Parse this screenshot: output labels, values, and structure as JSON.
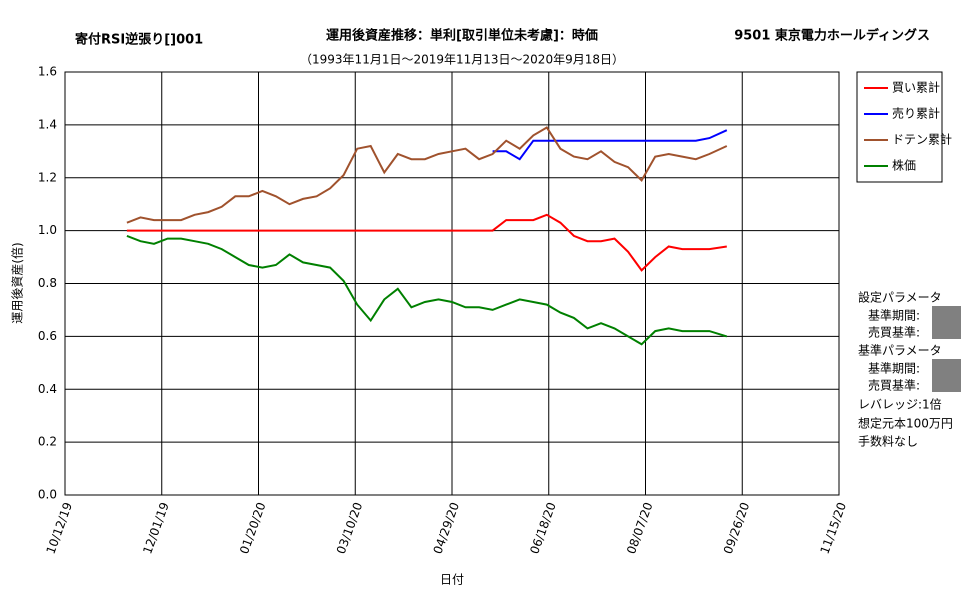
{
  "chart_data": {
    "type": "line",
    "title": "運用後資産推移：単利[取引単位未考慮]：時価",
    "subtitle": "（1993年11月1日～2019年11月13日～2020年9月18日）",
    "strategy": "寄付RSI逆張り[]001",
    "stock": "9501 東京電力ホールディングス",
    "xlabel": "日付",
    "ylabel": "運用後資産(倍)",
    "x": [
      "11/13/19",
      "11/20/19",
      "11/27/19",
      "12/04/19",
      "12/11/19",
      "12/18/19",
      "12/25/19",
      "01/01/20",
      "01/08/20",
      "01/15/20",
      "01/22/20",
      "01/29/20",
      "02/05/20",
      "02/12/20",
      "02/19/20",
      "02/26/20",
      "03/04/20",
      "03/11/20",
      "03/18/20",
      "03/25/20",
      "04/01/20",
      "04/08/20",
      "04/15/20",
      "04/22/20",
      "04/29/20",
      "05/06/20",
      "05/13/20",
      "05/20/20",
      "05/27/20",
      "06/03/20",
      "06/10/20",
      "06/17/20",
      "06/24/20",
      "07/01/20",
      "07/08/20",
      "07/15/20",
      "07/22/20",
      "07/29/20",
      "08/05/20",
      "08/12/20",
      "08/19/20",
      "08/26/20",
      "09/02/20",
      "09/09/20",
      "09/18/20"
    ],
    "series": [
      {
        "name": "買い累計",
        "color": "#ff0000",
        "values": [
          1.0,
          1.0,
          1.0,
          1.0,
          1.0,
          1.0,
          1.0,
          1.0,
          1.0,
          1.0,
          1.0,
          1.0,
          1.0,
          1.0,
          1.0,
          1.0,
          1.0,
          1.0,
          1.0,
          1.0,
          1.0,
          1.0,
          1.0,
          1.0,
          1.0,
          1.0,
          1.0,
          1.0,
          1.04,
          1.04,
          1.04,
          1.06,
          1.03,
          0.98,
          0.96,
          0.96,
          0.97,
          0.92,
          0.85,
          0.9,
          0.94,
          0.93,
          0.93,
          0.93,
          0.94
        ]
      },
      {
        "name": "売り累計",
        "color": "#0000ff",
        "values": [
          null,
          null,
          null,
          null,
          null,
          null,
          null,
          null,
          null,
          null,
          null,
          null,
          null,
          null,
          null,
          null,
          null,
          null,
          null,
          null,
          null,
          null,
          null,
          null,
          null,
          null,
          null,
          1.3,
          1.3,
          1.27,
          1.34,
          1.34,
          1.34,
          1.34,
          1.34,
          1.34,
          1.34,
          1.34,
          1.34,
          1.34,
          1.34,
          1.34,
          1.34,
          1.35,
          1.38
        ]
      },
      {
        "name": "ドテン累計",
        "color": "#a0522d",
        "values": [
          1.03,
          1.05,
          1.04,
          1.04,
          1.04,
          1.06,
          1.07,
          1.09,
          1.13,
          1.13,
          1.15,
          1.13,
          1.1,
          1.12,
          1.13,
          1.16,
          1.21,
          1.31,
          1.32,
          1.22,
          1.29,
          1.27,
          1.27,
          1.29,
          1.3,
          1.31,
          1.27,
          1.29,
          1.34,
          1.31,
          1.36,
          1.39,
          1.31,
          1.28,
          1.27,
          1.3,
          1.26,
          1.24,
          1.19,
          1.28,
          1.29,
          1.28,
          1.27,
          1.29,
          1.32
        ]
      },
      {
        "name": "株価",
        "color": "#008000",
        "values": [
          0.98,
          0.96,
          0.95,
          0.97,
          0.97,
          0.96,
          0.95,
          0.93,
          0.9,
          0.87,
          0.86,
          0.87,
          0.91,
          0.88,
          0.87,
          0.86,
          0.81,
          0.72,
          0.66,
          0.74,
          0.78,
          0.71,
          0.73,
          0.74,
          0.73,
          0.71,
          0.71,
          0.7,
          0.72,
          0.74,
          0.73,
          0.72,
          0.69,
          0.67,
          0.63,
          0.65,
          0.63,
          0.6,
          0.57,
          0.62,
          0.63,
          0.62,
          0.62,
          0.62,
          0.6
        ]
      }
    ],
    "xlim": [
      "10/12/19",
      "11/15/20"
    ],
    "xticks": [
      "10/12/19",
      "12/01/19",
      "01/20/20",
      "03/10/20",
      "04/29/20",
      "06/18/20",
      "08/07/20",
      "09/26/20",
      "11/15/20"
    ],
    "ylim": [
      0,
      1.6
    ],
    "yticks": [
      {
        "value": 0,
        "label": "0.0"
      },
      0.2,
      0.4,
      0.6,
      0.8,
      {
        "value": 1,
        "label": "1.0"
      },
      1.2,
      1.4,
      1.6
    ],
    "grid": true,
    "legend": "right",
    "params": [
      "設定パラメータ",
      "基準期間:",
      "売買基準:",
      "基準パラメータ",
      "基準期間:",
      "売買基準:",
      "レバレッジ:1倍",
      "想定元本100万円",
      "手数料なし"
    ]
  }
}
